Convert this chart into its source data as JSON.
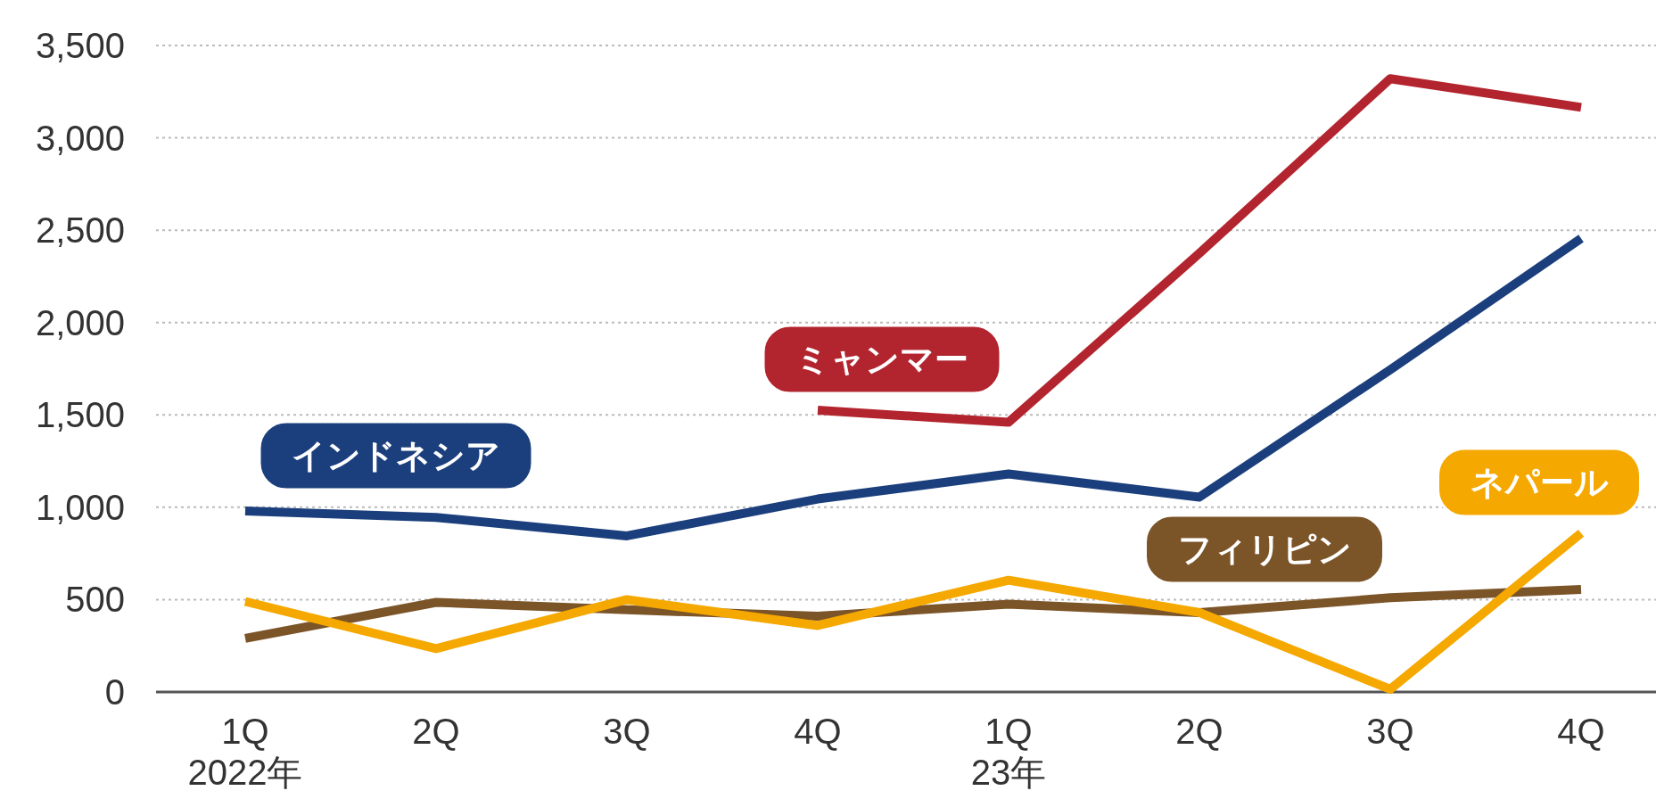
{
  "chart_data": {
    "type": "line",
    "categories": [
      "1Q\n2022年",
      "2Q",
      "3Q",
      "4Q",
      "1Q\n23年",
      "2Q",
      "3Q",
      "4Q"
    ],
    "series": [
      {
        "name": "インドネシア",
        "color": "#1b3f7c",
        "values": [
          980,
          945,
          845,
          1045,
          1180,
          1055,
          1745,
          2455
        ]
      },
      {
        "name": "ミャンマー",
        "color": "#b3252e",
        "values": [
          null,
          null,
          null,
          1525,
          1460,
          2375,
          3320,
          3165
        ]
      },
      {
        "name": "フィリピン",
        "color": "#7b5428",
        "values": [
          290,
          485,
          445,
          410,
          475,
          430,
          510,
          555
        ]
      },
      {
        "name": "ネパール",
        "color": "#f5a800",
        "values": [
          490,
          235,
          500,
          360,
          605,
          430,
          15,
          860
        ]
      }
    ],
    "ylim": [
      0,
      3500
    ],
    "yticks": [
      {
        "value": 0,
        "label": "0"
      },
      {
        "value": 500,
        "label": "500"
      },
      {
        "value": 1000,
        "label": "1,000"
      },
      {
        "value": 1500,
        "label": "1,500"
      },
      {
        "value": 2000,
        "label": "2,000"
      },
      {
        "value": 2500,
        "label": "2,500"
      },
      {
        "value": 3000,
        "label": "3,000"
      },
      {
        "value": 3500,
        "label": "3,500"
      }
    ],
    "grid": "y",
    "marker": "none",
    "line_style": "solid"
  }
}
